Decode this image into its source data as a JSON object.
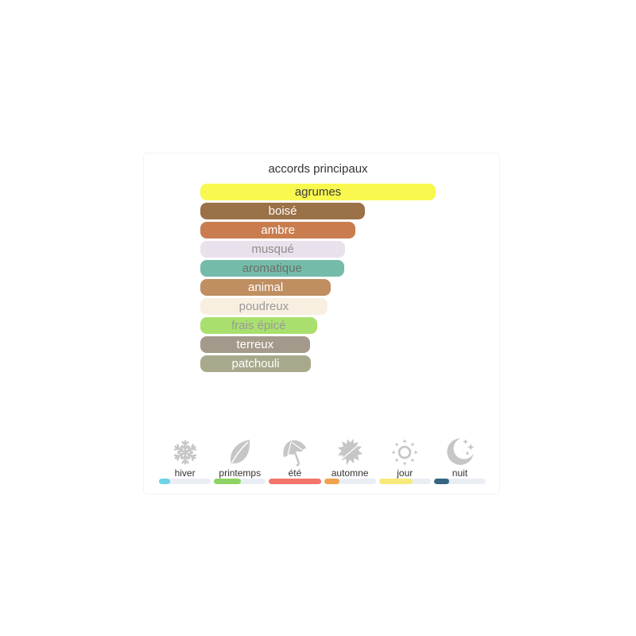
{
  "title": "accords principaux",
  "chart_data": {
    "type": "bar",
    "orientation": "horizontal",
    "title": "accords principaux",
    "unit": "percent_of_max",
    "bars": [
      {
        "label": "agrumes",
        "value": 100,
        "color": "#f8f84f",
        "text_color": "#3c3c3c"
      },
      {
        "label": "boisé",
        "value": 70,
        "color": "#9b7148",
        "text_color": "#ffffff"
      },
      {
        "label": "ambre",
        "value": 66,
        "color": "#c97d4e",
        "text_color": "#ffffff"
      },
      {
        "label": "musqué",
        "value": 61.5,
        "color": "#e9e2ec",
        "text_color": "#8d8d8d"
      },
      {
        "label": "aromatique",
        "value": 61,
        "color": "#74bca9",
        "text_color": "#6e6e6e"
      },
      {
        "label": "animal",
        "value": 55.5,
        "color": "#bf8e61",
        "text_color": "#ffffff"
      },
      {
        "label": "poudreux",
        "value": 54,
        "color": "#f8efe1",
        "text_color": "#9a9a9a"
      },
      {
        "label": "frais épicé",
        "value": 49.5,
        "color": "#a9e06d",
        "text_color": "#999999"
      },
      {
        "label": "terreux",
        "value": 46.5,
        "color": "#a49a8b",
        "text_color": "#ffffff"
      },
      {
        "label": "patchouli",
        "value": 47,
        "color": "#a8a88c",
        "text_color": "#ffffff"
      }
    ]
  },
  "seasons": {
    "icon_color": "#c6c6c6",
    "track_color": "#e9eef4",
    "items": [
      {
        "id": "hiver",
        "label": "hiver",
        "icon": "snowflake-icon",
        "fill": 22,
        "color": "#6cd3e4"
      },
      {
        "id": "printemps",
        "label": "printemps",
        "icon": "leaf-icon",
        "fill": 52,
        "color": "#8ed464"
      },
      {
        "id": "ete",
        "label": "été",
        "icon": "umbrella-icon",
        "fill": 100,
        "color": "#f3766b"
      },
      {
        "id": "automne",
        "label": "automne",
        "icon": "maple-leaf-icon",
        "fill": 30,
        "color": "#f1a24c"
      },
      {
        "id": "jour",
        "label": "jour",
        "icon": "sun-icon",
        "fill": 65,
        "color": "#f7ea7c"
      },
      {
        "id": "nuit",
        "label": "nuit",
        "icon": "moon-icon",
        "fill": 29,
        "color": "#356680"
      }
    ]
  }
}
